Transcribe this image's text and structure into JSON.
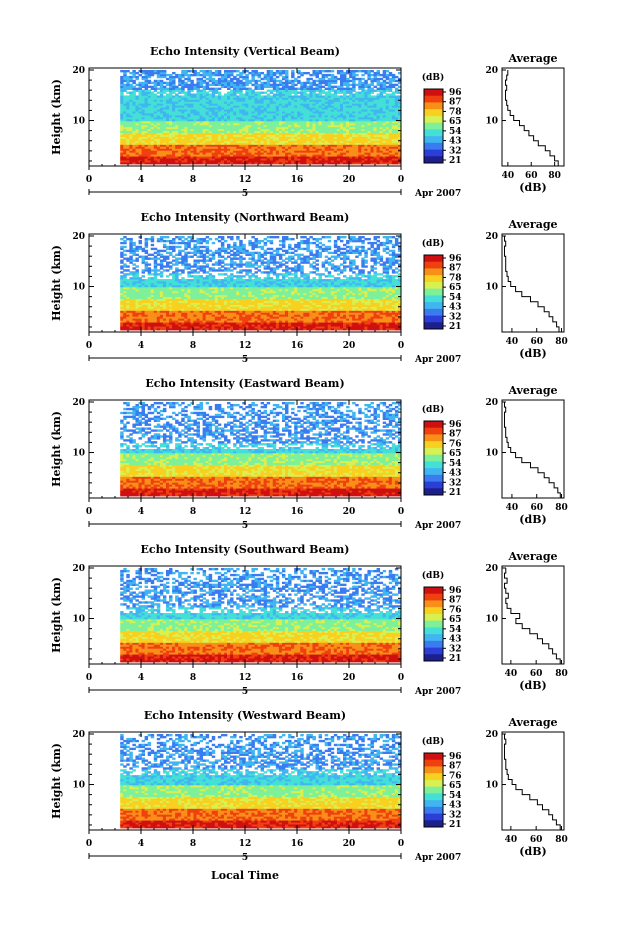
{
  "chart_data": [
    {
      "type": "heatmap",
      "title": "Echo Intensity (Vertical Beam)",
      "ylabel": "Height (km)",
      "xlim": [
        0,
        24
      ],
      "ylim": [
        1,
        20
      ],
      "x_ticks": [
        "0",
        "4",
        "8",
        "12",
        "16",
        "20",
        "0"
      ],
      "y_ticks": [
        "10",
        "20"
      ],
      "colorbar": {
        "label": "(dB)",
        "ticks": [
          "96",
          "87",
          "78",
          "65",
          "54",
          "43",
          "32",
          "21"
        ]
      },
      "date_marker": "5",
      "date_label": "Apr 2007",
      "profile": {
        "title": "Average",
        "xlabel": "(dB)",
        "x_ticks": [
          "40",
          "60",
          "80"
        ],
        "y_ticks": [
          "10",
          "20"
        ],
        "xlim": [
          35,
          88
        ],
        "height": [
          1,
          2,
          3,
          4,
          5,
          6,
          7,
          8,
          9,
          10,
          11,
          12,
          13,
          14,
          15,
          16,
          17,
          18,
          19,
          20
        ],
        "db": [
          85,
          83,
          80,
          76,
          72,
          66,
          62,
          58,
          54,
          50,
          45,
          42,
          40,
          39,
          38,
          38,
          39,
          38,
          39,
          40
        ]
      }
    },
    {
      "type": "heatmap",
      "title": "Echo Intensity (Northward Beam)",
      "ylabel": "Height (km)",
      "xlim": [
        0,
        24
      ],
      "ylim": [
        1,
        20
      ],
      "x_ticks": [
        "0",
        "4",
        "8",
        "12",
        "16",
        "20",
        "0"
      ],
      "y_ticks": [
        "10",
        "20"
      ],
      "colorbar": {
        "label": "(dB)",
        "ticks": [
          "96",
          "87",
          "78",
          "65",
          "54",
          "43",
          "32",
          "21"
        ]
      },
      "date_marker": "5",
      "date_label": "Apr 2007",
      "profile": {
        "title": "Average",
        "xlabel": "(dB)",
        "x_ticks": [
          "40",
          "60",
          "80"
        ],
        "y_ticks": [
          "10",
          "20"
        ],
        "xlim": [
          32,
          82
        ],
        "height": [
          1,
          2,
          3,
          4,
          5,
          6,
          7,
          8,
          9,
          10,
          11,
          12,
          13,
          14,
          15,
          16,
          17,
          18,
          19,
          20
        ],
        "db": [
          80,
          78,
          76,
          73,
          70,
          66,
          61,
          55,
          48,
          43,
          39,
          37,
          36,
          35,
          35,
          35,
          34,
          34,
          35,
          34
        ]
      }
    },
    {
      "type": "heatmap",
      "title": "Echo Intensity (Eastward Beam)",
      "ylabel": "Height (km)",
      "xlim": [
        0,
        24
      ],
      "ylim": [
        1,
        20
      ],
      "x_ticks": [
        "0",
        "4",
        "8",
        "12",
        "16",
        "20",
        "0"
      ],
      "y_ticks": [
        "10",
        "20"
      ],
      "colorbar": {
        "label": "(dB)",
        "ticks": [
          "96",
          "87",
          "76",
          "65",
          "54",
          "43",
          "32",
          "21"
        ]
      },
      "date_marker": "5",
      "date_label": "Apr 2007",
      "profile": {
        "title": "Average",
        "xlabel": "(dB)",
        "x_ticks": [
          "40",
          "60",
          "80"
        ],
        "y_ticks": [
          "10",
          "20"
        ],
        "xlim": [
          32,
          82
        ],
        "height": [
          1,
          2,
          3,
          4,
          5,
          6,
          7,
          8,
          9,
          10,
          11,
          12,
          13,
          14,
          15,
          16,
          17,
          18,
          19,
          20
        ],
        "db": [
          80,
          79,
          77,
          74,
          70,
          66,
          61,
          55,
          48,
          43,
          39,
          37,
          36,
          35,
          35,
          34,
          34,
          34,
          35,
          34
        ]
      }
    },
    {
      "type": "heatmap",
      "title": "Echo Intensity (Southward Beam)",
      "ylabel": "Height (km)",
      "xlim": [
        0,
        24
      ],
      "ylim": [
        1,
        20
      ],
      "x_ticks": [
        "0",
        "4",
        "8",
        "12",
        "16",
        "20",
        "0"
      ],
      "y_ticks": [
        "10",
        "20"
      ],
      "colorbar": {
        "label": "(dB)",
        "ticks": [
          "96",
          "87",
          "76",
          "65",
          "54",
          "43",
          "32",
          "21"
        ]
      },
      "date_marker": "5",
      "date_label": "Apr 2007",
      "profile": {
        "title": "Average",
        "xlabel": "(dB)",
        "x_ticks": [
          "40",
          "60",
          "80"
        ],
        "y_ticks": [
          "10",
          "20"
        ],
        "xlim": [
          33,
          82
        ],
        "height": [
          1,
          2,
          3,
          4,
          5,
          6,
          7,
          8,
          9,
          10,
          11,
          12,
          13,
          14,
          15,
          16,
          17,
          18,
          19,
          20
        ],
        "db": [
          80,
          79,
          76,
          73,
          70,
          65,
          61,
          55,
          49,
          44,
          47,
          40,
          37,
          36,
          38,
          36,
          35,
          37,
          35,
          36
        ]
      }
    },
    {
      "type": "heatmap",
      "title": "Echo Intensity (Westward Beam)",
      "ylabel": "Height (km)",
      "xlim": [
        0,
        24
      ],
      "ylim": [
        1,
        20
      ],
      "x_ticks": [
        "0",
        "4",
        "8",
        "12",
        "16",
        "20",
        "0"
      ],
      "y_ticks": [
        "10",
        "20"
      ],
      "colorbar": {
        "label": "(dB)",
        "ticks": [
          "96",
          "87",
          "76",
          "65",
          "54",
          "43",
          "32",
          "21"
        ]
      },
      "date_marker": "5",
      "date_label": "Apr 2007",
      "profile": {
        "title": "Average",
        "xlabel": "(dB)",
        "x_ticks": [
          "40",
          "60",
          "80"
        ],
        "y_ticks": [
          "10",
          "20"
        ],
        "xlim": [
          33,
          82
        ],
        "height": [
          1,
          2,
          3,
          4,
          5,
          6,
          7,
          8,
          9,
          10,
          11,
          12,
          13,
          14,
          15,
          16,
          17,
          18,
          19,
          20
        ],
        "db": [
          81,
          79,
          76,
          73,
          70,
          65,
          61,
          55,
          49,
          44,
          41,
          38,
          37,
          36,
          36,
          35,
          35,
          35,
          36,
          35
        ]
      }
    }
  ],
  "xlabel_common": "Local Time",
  "colors": {
    "scale": [
      "#1c1f8c",
      "#2b3fd8",
      "#3a7cf0",
      "#3fb6f0",
      "#44e0d8",
      "#7ff09a",
      "#d8f050",
      "#f8d020",
      "#f89018",
      "#f04010",
      "#d01010"
    ]
  }
}
